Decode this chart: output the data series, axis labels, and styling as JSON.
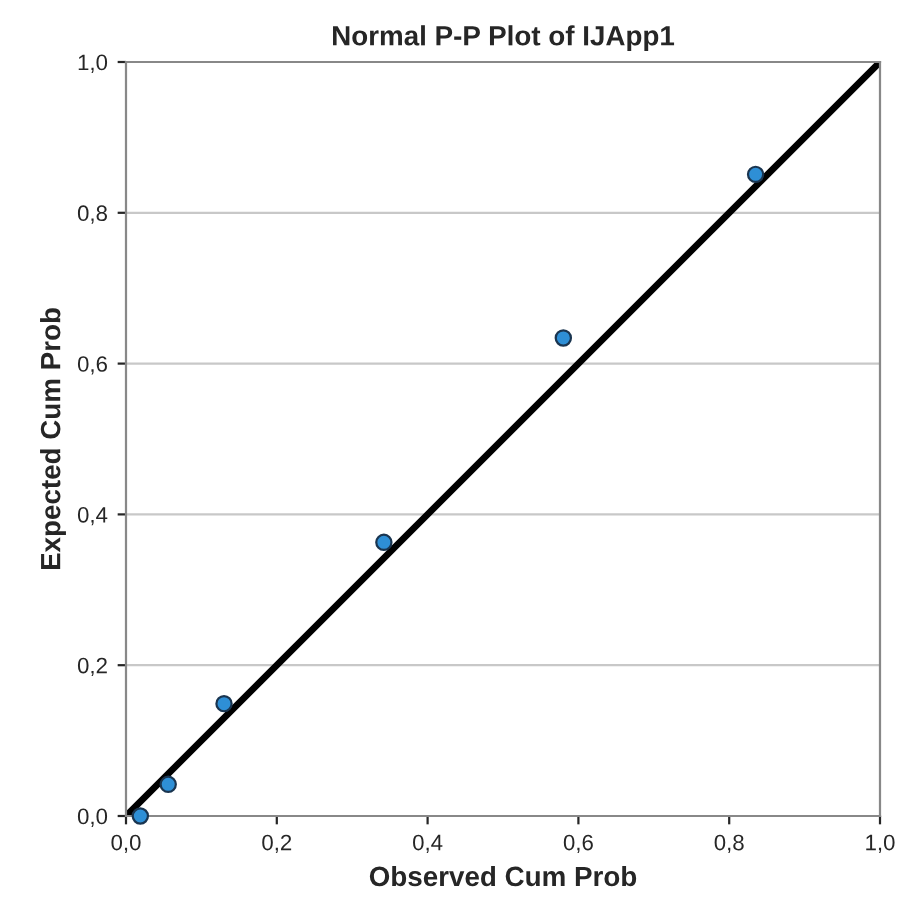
{
  "chart_data": {
    "type": "scatter",
    "title": "Normal P-P Plot of IJApp1",
    "xlabel": "Observed Cum Prob",
    "ylabel": "Expected Cum Prob",
    "xlim": [
      0,
      1
    ],
    "ylim": [
      0,
      1
    ],
    "xticks": [
      {
        "value": 0,
        "label": "0,0"
      },
      {
        "value": 0.2,
        "label": "0,2"
      },
      {
        "value": 0.4,
        "label": "0,4"
      },
      {
        "value": 0.6,
        "label": "0,6"
      },
      {
        "value": 0.8,
        "label": "0,8"
      },
      {
        "value": 1,
        "label": "1,0"
      }
    ],
    "yticks": [
      {
        "value": 0,
        "label": "0,0"
      },
      {
        "value": 0.2,
        "label": "0,2"
      },
      {
        "value": 0.4,
        "label": "0,4"
      },
      {
        "value": 0.6,
        "label": "0,6"
      },
      {
        "value": 0.8,
        "label": "0,8"
      },
      {
        "value": 1,
        "label": "1,0"
      }
    ],
    "grid": "y",
    "series": [
      {
        "marker": "circle",
        "color": "#2e8fd6",
        "x": [
          0.019,
          0.056,
          0.13,
          0.342,
          0.58,
          0.835
        ],
        "values": [
          0.0,
          0.042,
          0.149,
          0.363,
          0.634,
          0.851
        ]
      },
      {
        "type": "line",
        "color": "#000000",
        "x": [
          0,
          1
        ],
        "values": [
          0,
          1
        ]
      }
    ]
  }
}
